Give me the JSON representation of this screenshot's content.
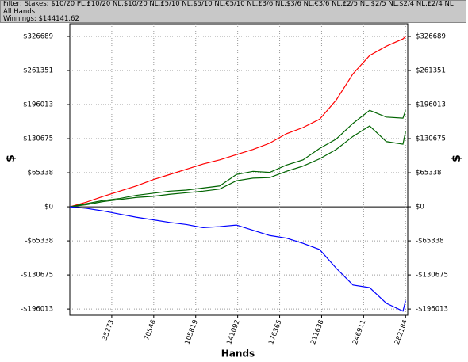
{
  "header": {
    "filter": "Filter: Stakes: $10/20 PL,£10/20 NL,$10/20 NL,£5/10 NL,$5/10 NL,€5/10 NL,£3/6 NL,$3/6 NL,€3/6 NL,£2/5 NL,$2/5 NL,$2/4 NL,£2/4 NL",
    "hands": "All Hands",
    "winnings": "Winnings: $144141.62"
  },
  "chart_data": {
    "type": "line",
    "x_label": "Hands",
    "y_label": "$",
    "grid": true,
    "x": [
      0,
      14000,
      28000,
      42000,
      56000,
      70000,
      84000,
      98000,
      112000,
      126000,
      140000,
      154000,
      168000,
      182000,
      196000,
      210000,
      224000,
      238000,
      252000,
      266000,
      280000,
      282184
    ],
    "series": [
      {
        "color": "#ff0000",
        "values": [
          0,
          9000,
          20000,
          30000,
          40000,
          52000,
          62000,
          72000,
          82000,
          90000,
          100000,
          110000,
          122000,
          140000,
          152000,
          168000,
          205000,
          255000,
          290000,
          308000,
          322000,
          326689
        ]
      },
      {
        "color": "#006400",
        "values": [
          0,
          6000,
          12000,
          16000,
          22000,
          26000,
          30000,
          32000,
          36000,
          40000,
          62000,
          68000,
          66000,
          80000,
          90000,
          112000,
          130000,
          160000,
          185000,
          172000,
          170000,
          185000
        ]
      },
      {
        "color": "#006400",
        "values": [
          0,
          4000,
          10000,
          14000,
          18000,
          20000,
          24000,
          27000,
          30000,
          34000,
          50000,
          55000,
          56000,
          68000,
          78000,
          92000,
          110000,
          135000,
          155000,
          125000,
          120000,
          144141
        ]
      },
      {
        "color": "#0000ff",
        "values": [
          0,
          -3000,
          -8000,
          -14000,
          -20000,
          -25000,
          -30000,
          -34000,
          -40000,
          -38000,
          -35000,
          -45000,
          -55000,
          -60000,
          -70000,
          -82000,
          -118000,
          -150000,
          -155000,
          -185000,
          -200000,
          -180000
        ]
      }
    ],
    "xlim": [
      0,
      284000
    ],
    "xticks": [
      35273,
      70546,
      105819,
      141092,
      176365,
      211638,
      246911,
      282184
    ],
    "ylim": [
      -208000,
      351000
    ],
    "yticks": [
      {
        "value": -196013,
        "label": "-$196013"
      },
      {
        "value": -130675,
        "label": "-$130675"
      },
      {
        "value": -65338,
        "label": "-$65338"
      },
      {
        "value": 0,
        "label": "$0"
      },
      {
        "value": 65338,
        "label": "$65338"
      },
      {
        "value": 130675,
        "label": "$130675"
      },
      {
        "value": 196013,
        "label": "$196013"
      },
      {
        "value": 261351,
        "label": "$261351"
      },
      {
        "value": 326689,
        "label": "$326689"
      }
    ]
  }
}
